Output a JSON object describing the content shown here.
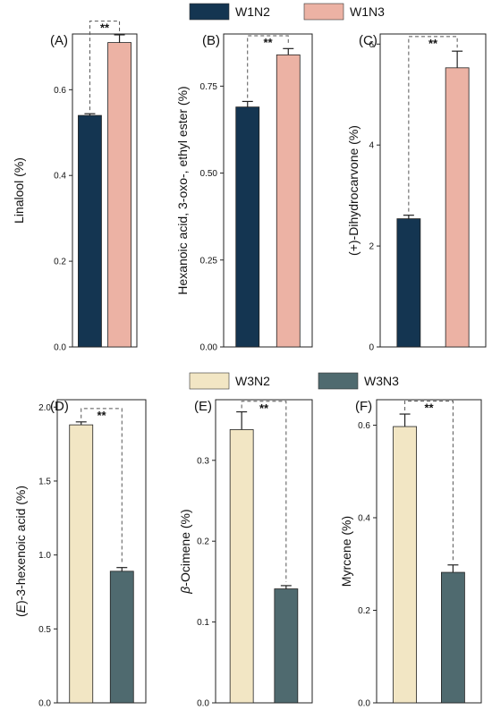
{
  "legends": [
    {
      "entries": [
        {
          "label": "W1N2",
          "color": "#143551"
        },
        {
          "label": "W1N3",
          "color": "#ecb2a4"
        }
      ]
    },
    {
      "entries": [
        {
          "label": "W3N2",
          "color": "#f2e6c4"
        },
        {
          "label": "W3N3",
          "color": "#4f6a6f"
        }
      ]
    }
  ],
  "chart_data": [
    {
      "type": "bar",
      "panel": "(A)",
      "ylabel": "Linalool (%)",
      "categories": [
        "W1N2",
        "W1N3"
      ],
      "values": [
        0.54,
        0.71
      ],
      "errors": [
        0.004,
        0.018
      ],
      "colors": [
        "#143551",
        "#ecb2a4"
      ],
      "ylim": [
        0,
        0.73
      ],
      "yticks": [
        0.0,
        0.2,
        0.4,
        0.6
      ],
      "tick_labels": [
        "0.0",
        "0.2",
        "0.4",
        "0.6"
      ],
      "significance": "**",
      "bracket_y": 0.76,
      "bracket_side": "right",
      "grid": false
    },
    {
      "type": "bar",
      "panel": "(B)",
      "ylabel": "Hexanoic acid, 3-oxo-, ethyl ester (%)",
      "categories": [
        "W1N2",
        "W1N3"
      ],
      "values": [
        0.69,
        0.84
      ],
      "errors": [
        0.016,
        0.018
      ],
      "colors": [
        "#143551",
        "#ecb2a4"
      ],
      "ylim": [
        0,
        0.9
      ],
      "yticks": [
        0.0,
        0.25,
        0.5,
        0.75
      ],
      "tick_labels": [
        "0.00",
        "0.25",
        "0.50",
        "0.75"
      ],
      "significance": "**",
      "bracket_y": 0.895,
      "bracket_side": "right",
      "grid": false
    },
    {
      "type": "bar",
      "panel": "(C)",
      "ylabel": "(+)-Dihydrocarvone (%)",
      "categories": [
        "W1N2",
        "W1N3"
      ],
      "values": [
        2.54,
        5.53
      ],
      "errors": [
        0.07,
        0.33
      ],
      "colors": [
        "#143551",
        "#ecb2a4"
      ],
      "ylim": [
        0,
        6.2
      ],
      "yticks": [
        0,
        2,
        4,
        6
      ],
      "tick_labels": [
        "0",
        "2",
        "4",
        "6"
      ],
      "significance": "**",
      "bracket_y": 6.15,
      "bracket_side": "right",
      "grid": false
    },
    {
      "type": "bar",
      "panel": "(D)",
      "ylabel": "(E)-3-hexenoic acid (%)",
      "ylabel_italic": "E",
      "categories": [
        "W3N2",
        "W3N3"
      ],
      "values": [
        1.88,
        0.89
      ],
      "errors": [
        0.02,
        0.025
      ],
      "colors": [
        "#f2e6c4",
        "#4f6a6f"
      ],
      "ylim": [
        0,
        2.05
      ],
      "yticks": [
        0.0,
        0.5,
        1.0,
        1.5,
        2.0
      ],
      "tick_labels": [
        "0.0",
        "0.5",
        "1.0",
        "1.5",
        "2.0"
      ],
      "significance": "**",
      "bracket_y": 1.99,
      "bracket_side": "left",
      "grid": false
    },
    {
      "type": "bar",
      "panel": "(E)",
      "ylabel": "β-Ocimene (%)",
      "ylabel_italic": "β",
      "categories": [
        "W3N2",
        "W3N3"
      ],
      "values": [
        0.338,
        0.141
      ],
      "errors": [
        0.022,
        0.004
      ],
      "colors": [
        "#f2e6c4",
        "#4f6a6f"
      ],
      "ylim": [
        0,
        0.375
      ],
      "yticks": [
        0.0,
        0.1,
        0.2,
        0.3
      ],
      "tick_labels": [
        "0.0",
        "0.1",
        "0.2",
        "0.3"
      ],
      "significance": "**",
      "bracket_y": 0.373,
      "bracket_side": "left",
      "grid": false
    },
    {
      "type": "bar",
      "panel": "(F)",
      "ylabel": "Myrcene (%)",
      "categories": [
        "W3N2",
        "W3N3"
      ],
      "values": [
        0.597,
        0.282
      ],
      "errors": [
        0.027,
        0.016
      ],
      "colors": [
        "#f2e6c4",
        "#4f6a6f"
      ],
      "ylim": [
        0,
        0.655
      ],
      "yticks": [
        0.0,
        0.2,
        0.4,
        0.6
      ],
      "tick_labels": [
        "0.0",
        "0.2",
        "0.4",
        "0.6"
      ],
      "significance": "**",
      "bracket_y": 0.652,
      "bracket_side": "left",
      "grid": false
    }
  ]
}
